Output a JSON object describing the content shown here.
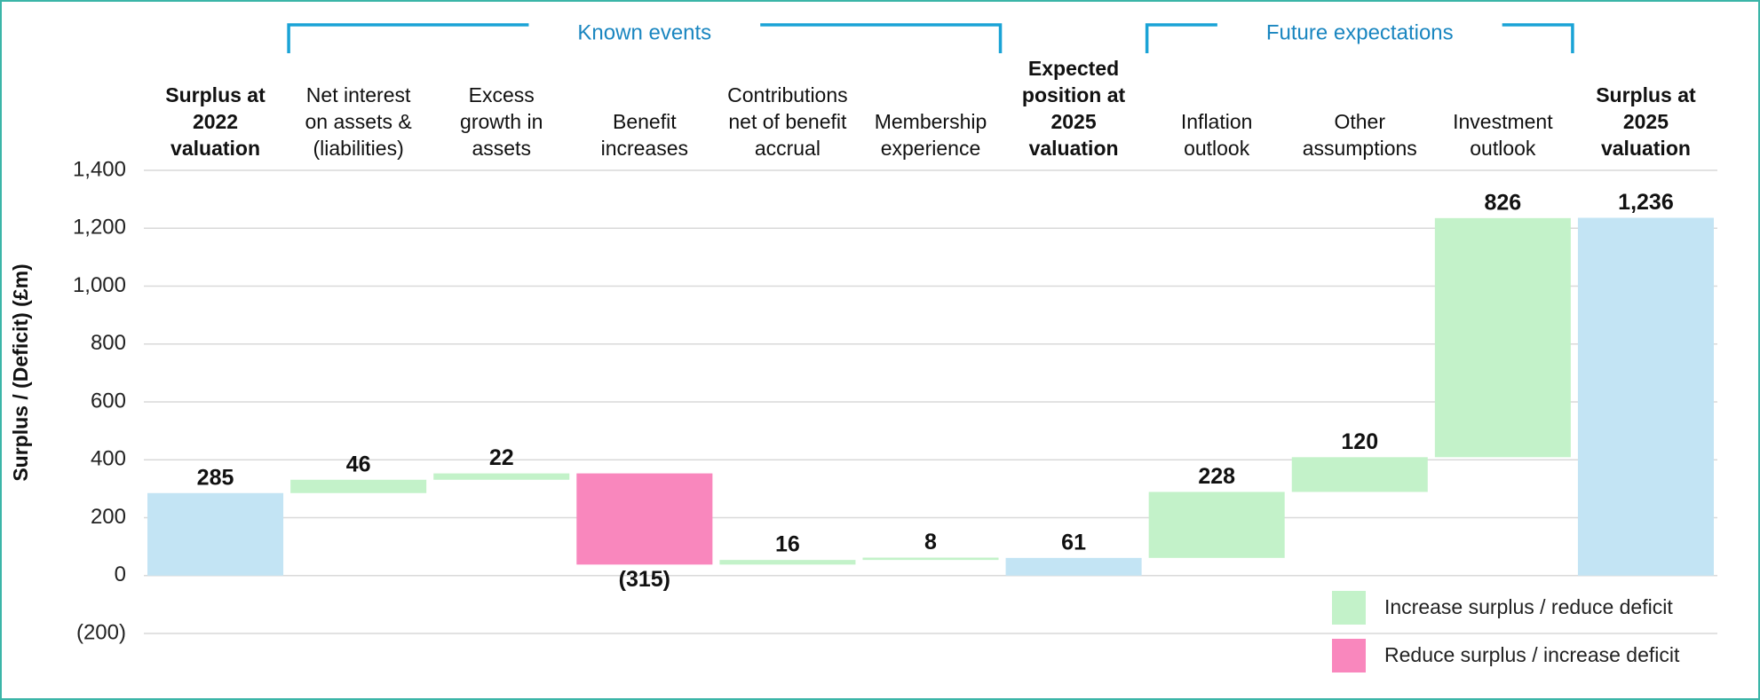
{
  "chart_data": {
    "type": "waterfall",
    "y_label": "Surplus / (Deficit) (£m)",
    "categories": [
      "Surplus at\n2022\nvaluation",
      "Net interest\non assets &\n(liabilities)",
      "Excess\ngrowth in\nassets",
      "Benefit\nincreases",
      "Contributions\nnet of benefit\naccrual",
      "Membership\nexperience",
      "Expected\nposition at\n2025\nvaluation",
      "Inflation\noutlook",
      "Other\nassumptions",
      "Investment\noutlook",
      "Surplus at\n2025\nvaluation"
    ],
    "values": [
      285,
      46,
      22,
      -315,
      16,
      8,
      61,
      228,
      120,
      826,
      1236
    ],
    "value_labels": [
      "285",
      "46",
      "22",
      "(315)",
      "16",
      "8",
      "61",
      "228",
      "120",
      "826",
      "1,236"
    ],
    "totals": [
      0,
      6,
      10
    ],
    "total_color": "#c3e4f4",
    "groups": [
      {
        "label": "Known events",
        "from": 1,
        "to": 5
      },
      {
        "label": "Future expectations",
        "from": 7,
        "to": 9
      }
    ],
    "series": [
      {
        "name": "Increase surplus / reduce deficit",
        "color": "#c3f2c9"
      },
      {
        "name": "Reduce surplus / increase deficit",
        "color": "#f987bd"
      }
    ],
    "ylim": [
      -200,
      1400
    ],
    "yticks": [
      {
        "value": -200,
        "label": "(200)"
      },
      0,
      200,
      400,
      600,
      800,
      {
        "value": 1000,
        "label": "1,000"
      },
      {
        "value": 1200,
        "label": "1,200"
      },
      {
        "value": 1400,
        "label": "1,400"
      }
    ],
    "grid": true,
    "legend": "lower right"
  }
}
